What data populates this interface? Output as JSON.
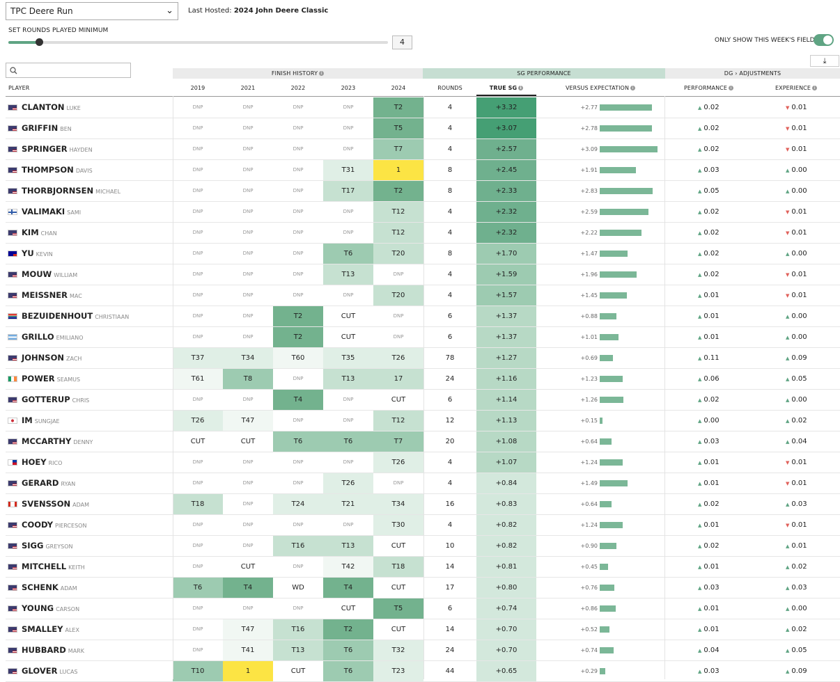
{
  "course": {
    "selected": "TPC Deere Run"
  },
  "last_hosted": {
    "label": "Last Hosted:",
    "value": "2024 John Deere Classic"
  },
  "rounds_filter": {
    "label": "SET ROUNDS PLAYED MINIMUM",
    "value": "4",
    "slider_level": 0.08
  },
  "field_toggle": {
    "label": "ONLY SHOW THIS WEEK'S FIELD",
    "on": true
  },
  "download": {
    "icon": "download-icon",
    "glyph": "⤓"
  },
  "search": {
    "placeholder": "",
    "icon": "search-icon"
  },
  "groups": {
    "finish_history": "FINISH HISTORY",
    "sg_performance": "SG PERFORMANCE",
    "adjustments": "DG › ADJUSTMENTS"
  },
  "headers": {
    "player": "PLAYER",
    "years": [
      "2019",
      "2021",
      "2022",
      "2023",
      "2024"
    ],
    "rounds": "ROUNDS",
    "true_sg": "TRUE SG",
    "versus": "VERSUS EXPECTATION",
    "performance": "PERFORMANCE",
    "experience": "EXPERIENCE"
  },
  "colors": {
    "accent": "#5fa483",
    "win": "#fce444",
    "up": "#5fa483",
    "down": "#e0605a"
  },
  "players": [
    {
      "last": "CLANTON",
      "first": "LUKE",
      "flag": "us",
      "hist": [
        "DNP",
        "DNP",
        "DNP",
        "DNP",
        "T2"
      ],
      "rounds": "4",
      "true_sg": "+3.32",
      "vs": "+2.77",
      "perf": {
        "dir": "up",
        "val": "0.02"
      },
      "exp": {
        "dir": "down",
        "val": "0.01"
      }
    },
    {
      "last": "GRIFFIN",
      "first": "BEN",
      "flag": "us",
      "hist": [
        "DNP",
        "DNP",
        "DNP",
        "DNP",
        "T5"
      ],
      "rounds": "4",
      "true_sg": "+3.07",
      "vs": "+2.78",
      "perf": {
        "dir": "up",
        "val": "0.02"
      },
      "exp": {
        "dir": "down",
        "val": "0.01"
      }
    },
    {
      "last": "SPRINGER",
      "first": "HAYDEN",
      "flag": "us",
      "hist": [
        "DNP",
        "DNP",
        "DNP",
        "DNP",
        "T7"
      ],
      "rounds": "4",
      "true_sg": "+2.57",
      "vs": "+3.09",
      "perf": {
        "dir": "up",
        "val": "0.02"
      },
      "exp": {
        "dir": "down",
        "val": "0.01"
      }
    },
    {
      "last": "THOMPSON",
      "first": "DAVIS",
      "flag": "us",
      "hist": [
        "DNP",
        "DNP",
        "DNP",
        "T31",
        "1"
      ],
      "rounds": "8",
      "true_sg": "+2.45",
      "vs": "+1.91",
      "perf": {
        "dir": "up",
        "val": "0.03"
      },
      "exp": {
        "dir": "up",
        "val": "0.00"
      }
    },
    {
      "last": "THORBJORNSEN",
      "first": "MICHAEL",
      "flag": "us",
      "hist": [
        "DNP",
        "DNP",
        "DNP",
        "T17",
        "T2"
      ],
      "rounds": "8",
      "true_sg": "+2.33",
      "vs": "+2.83",
      "perf": {
        "dir": "up",
        "val": "0.05"
      },
      "exp": {
        "dir": "up",
        "val": "0.00"
      }
    },
    {
      "last": "VALIMAKI",
      "first": "SAMI",
      "flag": "fi",
      "hist": [
        "DNP",
        "DNP",
        "DNP",
        "DNP",
        "T12"
      ],
      "rounds": "4",
      "true_sg": "+2.32",
      "vs": "+2.59",
      "perf": {
        "dir": "up",
        "val": "0.02"
      },
      "exp": {
        "dir": "down",
        "val": "0.01"
      }
    },
    {
      "last": "KIM",
      "first": "CHAN",
      "flag": "us",
      "hist": [
        "DNP",
        "DNP",
        "DNP",
        "DNP",
        "T12"
      ],
      "rounds": "4",
      "true_sg": "+2.32",
      "vs": "+2.22",
      "perf": {
        "dir": "up",
        "val": "0.02"
      },
      "exp": {
        "dir": "down",
        "val": "0.01"
      }
    },
    {
      "last": "YU",
      "first": "KEVIN",
      "flag": "tw",
      "hist": [
        "DNP",
        "DNP",
        "DNP",
        "T6",
        "T20"
      ],
      "rounds": "8",
      "true_sg": "+1.70",
      "vs": "+1.47",
      "perf": {
        "dir": "up",
        "val": "0.02"
      },
      "exp": {
        "dir": "up",
        "val": "0.00"
      }
    },
    {
      "last": "MOUW",
      "first": "WILLIAM",
      "flag": "us",
      "hist": [
        "DNP",
        "DNP",
        "DNP",
        "T13",
        "DNP"
      ],
      "rounds": "4",
      "true_sg": "+1.59",
      "vs": "+1.96",
      "perf": {
        "dir": "up",
        "val": "0.02"
      },
      "exp": {
        "dir": "down",
        "val": "0.01"
      }
    },
    {
      "last": "MEISSNER",
      "first": "MAC",
      "flag": "us",
      "hist": [
        "DNP",
        "DNP",
        "DNP",
        "DNP",
        "T20"
      ],
      "rounds": "4",
      "true_sg": "+1.57",
      "vs": "+1.45",
      "perf": {
        "dir": "up",
        "val": "0.01"
      },
      "exp": {
        "dir": "down",
        "val": "0.01"
      }
    },
    {
      "last": "BEZUIDENHOUT",
      "first": "CHRISTIAAN",
      "flag": "za",
      "hist": [
        "DNP",
        "DNP",
        "T2",
        "CUT",
        "DNP"
      ],
      "rounds": "6",
      "true_sg": "+1.37",
      "vs": "+0.88",
      "perf": {
        "dir": "up",
        "val": "0.01"
      },
      "exp": {
        "dir": "up",
        "val": "0.00"
      }
    },
    {
      "last": "GRILLO",
      "first": "EMILIANO",
      "flag": "ar",
      "hist": [
        "DNP",
        "DNP",
        "T2",
        "CUT",
        "DNP"
      ],
      "rounds": "6",
      "true_sg": "+1.37",
      "vs": "+1.01",
      "perf": {
        "dir": "up",
        "val": "0.01"
      },
      "exp": {
        "dir": "up",
        "val": "0.00"
      }
    },
    {
      "last": "JOHNSON",
      "first": "ZACH",
      "flag": "us",
      "hist": [
        "T37",
        "T34",
        "T60",
        "T35",
        "T26"
      ],
      "rounds": "78",
      "true_sg": "+1.27",
      "vs": "+0.69",
      "perf": {
        "dir": "up",
        "val": "0.11"
      },
      "exp": {
        "dir": "up",
        "val": "0.09"
      }
    },
    {
      "last": "POWER",
      "first": "SEAMUS",
      "flag": "ie",
      "hist": [
        "T61",
        "T8",
        "DNP",
        "T13",
        "17"
      ],
      "rounds": "24",
      "true_sg": "+1.16",
      "vs": "+1.23",
      "perf": {
        "dir": "up",
        "val": "0.06"
      },
      "exp": {
        "dir": "up",
        "val": "0.05"
      }
    },
    {
      "last": "GOTTERUP",
      "first": "CHRIS",
      "flag": "us",
      "hist": [
        "DNP",
        "DNP",
        "T4",
        "DNP",
        "CUT"
      ],
      "rounds": "6",
      "true_sg": "+1.14",
      "vs": "+1.26",
      "perf": {
        "dir": "up",
        "val": "0.02"
      },
      "exp": {
        "dir": "up",
        "val": "0.00"
      }
    },
    {
      "last": "IM",
      "first": "SUNGJAE",
      "flag": "kr",
      "hist": [
        "T26",
        "T47",
        "DNP",
        "DNP",
        "T12"
      ],
      "rounds": "12",
      "true_sg": "+1.13",
      "vs": "+0.15",
      "perf": {
        "dir": "up",
        "val": "0.00"
      },
      "exp": {
        "dir": "up",
        "val": "0.02"
      }
    },
    {
      "last": "MCCARTHY",
      "first": "DENNY",
      "flag": "us",
      "hist": [
        "CUT",
        "CUT",
        "T6",
        "T6",
        "T7"
      ],
      "rounds": "20",
      "true_sg": "+1.08",
      "vs": "+0.64",
      "perf": {
        "dir": "up",
        "val": "0.03"
      },
      "exp": {
        "dir": "up",
        "val": "0.04"
      }
    },
    {
      "last": "HOEY",
      "first": "RICO",
      "flag": "ph",
      "hist": [
        "DNP",
        "DNP",
        "DNP",
        "DNP",
        "T26"
      ],
      "rounds": "4",
      "true_sg": "+1.07",
      "vs": "+1.24",
      "perf": {
        "dir": "up",
        "val": "0.01"
      },
      "exp": {
        "dir": "down",
        "val": "0.01"
      }
    },
    {
      "last": "GERARD",
      "first": "RYAN",
      "flag": "us",
      "hist": [
        "DNP",
        "DNP",
        "DNP",
        "T26",
        "DNP"
      ],
      "rounds": "4",
      "true_sg": "+0.84",
      "vs": "+1.49",
      "perf": {
        "dir": "up",
        "val": "0.01"
      },
      "exp": {
        "dir": "down",
        "val": "0.01"
      }
    },
    {
      "last": "SVENSSON",
      "first": "ADAM",
      "flag": "ca",
      "hist": [
        "T18",
        "DNP",
        "T24",
        "T21",
        "T34"
      ],
      "rounds": "16",
      "true_sg": "+0.83",
      "vs": "+0.64",
      "perf": {
        "dir": "up",
        "val": "0.02"
      },
      "exp": {
        "dir": "up",
        "val": "0.03"
      }
    },
    {
      "last": "COODY",
      "first": "PIERCESON",
      "flag": "us",
      "hist": [
        "DNP",
        "DNP",
        "DNP",
        "DNP",
        "T30"
      ],
      "rounds": "4",
      "true_sg": "+0.82",
      "vs": "+1.24",
      "perf": {
        "dir": "up",
        "val": "0.01"
      },
      "exp": {
        "dir": "down",
        "val": "0.01"
      }
    },
    {
      "last": "SIGG",
      "first": "GREYSON",
      "flag": "us",
      "hist": [
        "DNP",
        "DNP",
        "T16",
        "T13",
        "CUT"
      ],
      "rounds": "10",
      "true_sg": "+0.82",
      "vs": "+0.90",
      "perf": {
        "dir": "up",
        "val": "0.02"
      },
      "exp": {
        "dir": "up",
        "val": "0.01"
      }
    },
    {
      "last": "MITCHELL",
      "first": "KEITH",
      "flag": "us",
      "hist": [
        "DNP",
        "CUT",
        "DNP",
        "T42",
        "T18"
      ],
      "rounds": "14",
      "true_sg": "+0.81",
      "vs": "+0.45",
      "perf": {
        "dir": "up",
        "val": "0.01"
      },
      "exp": {
        "dir": "up",
        "val": "0.02"
      }
    },
    {
      "last": "SCHENK",
      "first": "ADAM",
      "flag": "us",
      "hist": [
        "T6",
        "T4",
        "WD",
        "T4",
        "CUT"
      ],
      "rounds": "17",
      "true_sg": "+0.80",
      "vs": "+0.76",
      "perf": {
        "dir": "up",
        "val": "0.03"
      },
      "exp": {
        "dir": "up",
        "val": "0.03"
      }
    },
    {
      "last": "YOUNG",
      "first": "CARSON",
      "flag": "us",
      "hist": [
        "DNP",
        "DNP",
        "DNP",
        "CUT",
        "T5"
      ],
      "rounds": "6",
      "true_sg": "+0.74",
      "vs": "+0.86",
      "perf": {
        "dir": "up",
        "val": "0.01"
      },
      "exp": {
        "dir": "up",
        "val": "0.00"
      }
    },
    {
      "last": "SMALLEY",
      "first": "ALEX",
      "flag": "us",
      "hist": [
        "DNP",
        "T47",
        "T16",
        "T2",
        "CUT"
      ],
      "rounds": "14",
      "true_sg": "+0.70",
      "vs": "+0.52",
      "perf": {
        "dir": "up",
        "val": "0.01"
      },
      "exp": {
        "dir": "up",
        "val": "0.02"
      }
    },
    {
      "last": "HUBBARD",
      "first": "MARK",
      "flag": "us",
      "hist": [
        "DNP",
        "T41",
        "T13",
        "T6",
        "T32"
      ],
      "rounds": "24",
      "true_sg": "+0.70",
      "vs": "+0.74",
      "perf": {
        "dir": "up",
        "val": "0.04"
      },
      "exp": {
        "dir": "up",
        "val": "0.05"
      }
    },
    {
      "last": "GLOVER",
      "first": "LUCAS",
      "flag": "us",
      "hist": [
        "T10",
        "1",
        "CUT",
        "T6",
        "T23"
      ],
      "rounds": "44",
      "true_sg": "+0.65",
      "vs": "+0.29",
      "perf": {
        "dir": "up",
        "val": "0.03"
      },
      "exp": {
        "dir": "up",
        "val": "0.09"
      }
    }
  ]
}
